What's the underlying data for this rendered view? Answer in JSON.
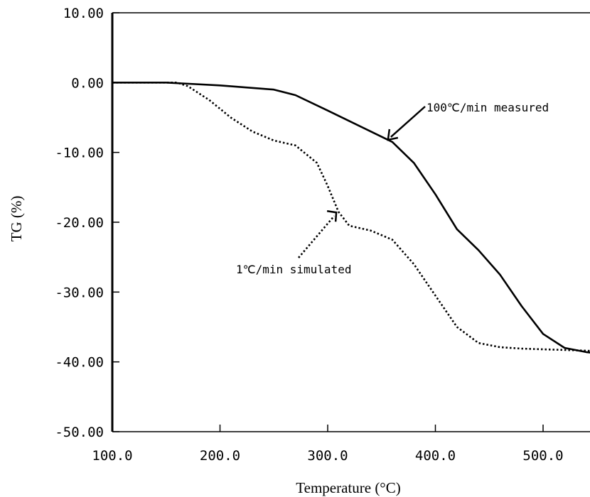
{
  "chart_data": {
    "type": "line",
    "xlabel": "Temperature (°C)",
    "ylabel": "TG (%)",
    "xlim": [
      100,
      550
    ],
    "ylim": [
      -50,
      10
    ],
    "x_ticks": [
      100,
      200,
      300,
      400,
      500
    ],
    "x_tick_labels": [
      "100.0",
      "200.0",
      "300.0",
      "400.0",
      "500.0"
    ],
    "y_ticks": [
      10,
      0,
      -10,
      -20,
      -30,
      -40,
      -50
    ],
    "y_tick_labels": [
      "10.00",
      "0.00",
      "-10.00",
      "-20.00",
      "-30.00",
      "-40.00",
      "-50.00"
    ],
    "grid": false,
    "series": [
      {
        "name": "100℃/min measured",
        "style": "solid",
        "x": [
          100,
          150,
          200,
          250,
          270,
          300,
          320,
          340,
          360,
          380,
          400,
          420,
          440,
          460,
          480,
          500,
          520,
          540,
          550
        ],
        "y": [
          0,
          0,
          -0.4,
          -1.0,
          -1.8,
          -4.0,
          -5.5,
          -7.0,
          -8.5,
          -11.5,
          -16.0,
          -21.0,
          -24.0,
          -27.5,
          -32.0,
          -36.0,
          -38.0,
          -38.6,
          -38.8
        ]
      },
      {
        "name": "1℃/min simulated",
        "style": "dotted",
        "x": [
          100,
          160,
          170,
          190,
          210,
          230,
          250,
          270,
          290,
          300,
          310,
          320,
          340,
          360,
          380,
          400,
          420,
          440,
          460,
          480,
          500,
          520,
          540,
          550
        ],
        "y": [
          0,
          0,
          -0.5,
          -2.5,
          -5.0,
          -7.0,
          -8.3,
          -9.0,
          -11.5,
          -14.8,
          -18.5,
          -20.5,
          -21.2,
          -22.5,
          -26.0,
          -30.5,
          -35.0,
          -37.3,
          -37.9,
          -38.1,
          -38.2,
          -38.3,
          -38.4,
          -38.5
        ]
      }
    ],
    "annotations": [
      {
        "text": "100℃/min measured",
        "target": [
          356,
          -8.2
        ]
      },
      {
        "text": "1℃/min simulated",
        "target": [
          308,
          -18.6
        ]
      }
    ]
  },
  "colors": {
    "line": "#000000",
    "background": "#ffffff"
  }
}
